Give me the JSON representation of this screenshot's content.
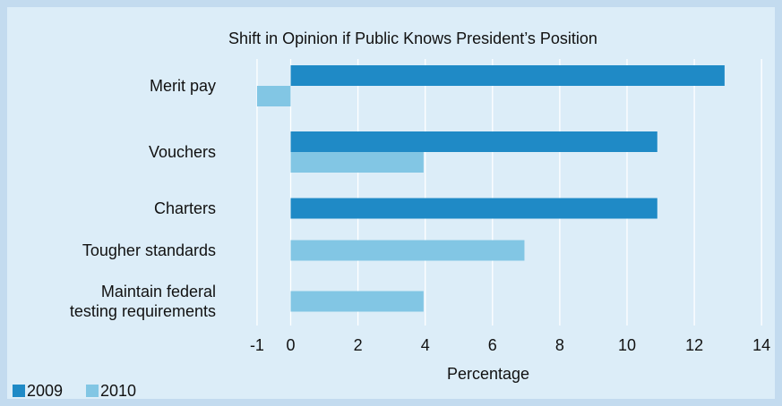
{
  "chart_data": {
    "type": "bar",
    "orientation": "horizontal",
    "title": "Shift in Opinion if Public Knows President’s Position",
    "xlabel": "Percentage",
    "ylabel": "",
    "xlim": [
      -1,
      14
    ],
    "x_ticks": [
      "-1",
      "0",
      "2",
      "4",
      "6",
      "8",
      "10",
      "12",
      "14"
    ],
    "grid": true,
    "legend_position": "bottom-left",
    "categories": [
      [
        "Merit pay"
      ],
      [
        "Vouchers"
      ],
      [
        "Charters"
      ],
      [
        "Tougher standards"
      ],
      [
        "Maintain federal",
        "testing requirements"
      ]
    ],
    "series": [
      {
        "name": "2009",
        "color": "#1f8ac6",
        "values": [
          12.9,
          10.9,
          10.9,
          null,
          null
        ]
      },
      {
        "name": "2010",
        "color": "#82c6e4",
        "values": [
          -1.0,
          3.95,
          null,
          6.95,
          3.95
        ]
      }
    ]
  }
}
